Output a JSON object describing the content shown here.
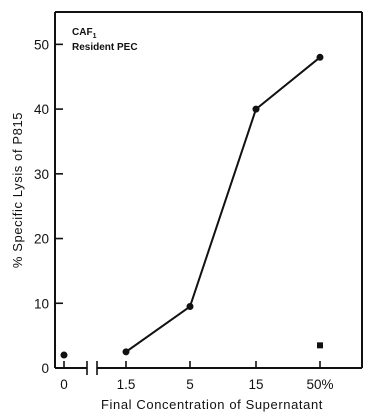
{
  "chart_data": {
    "type": "line",
    "annotation": {
      "line1": "CAF",
      "line1_subscript": "1",
      "line2": "Resident PEC"
    },
    "ylabel": "% Specific Lysis of P815",
    "xlabel": "Final Concentration of Supernatant",
    "ylim": [
      0,
      55
    ],
    "yticks": [
      0,
      10,
      20,
      30,
      40,
      50
    ],
    "x_categories": [
      "0",
      "1.5",
      "5",
      "15",
      "50%"
    ],
    "x_axis_break_after_first": true,
    "grid": false,
    "series": [
      {
        "marker": "circle",
        "connected": true,
        "points": [
          {
            "x": "1.5",
            "y": 2.5
          },
          {
            "x": "5",
            "y": 9.5
          },
          {
            "x": "15",
            "y": 40
          },
          {
            "x": "50%",
            "y": 48
          }
        ]
      },
      {
        "marker": "circle",
        "connected": false,
        "points": [
          {
            "x": "0",
            "y": 2
          }
        ]
      },
      {
        "marker": "square",
        "connected": false,
        "points": [
          {
            "x": "50%",
            "y": 3.5
          }
        ]
      }
    ]
  }
}
